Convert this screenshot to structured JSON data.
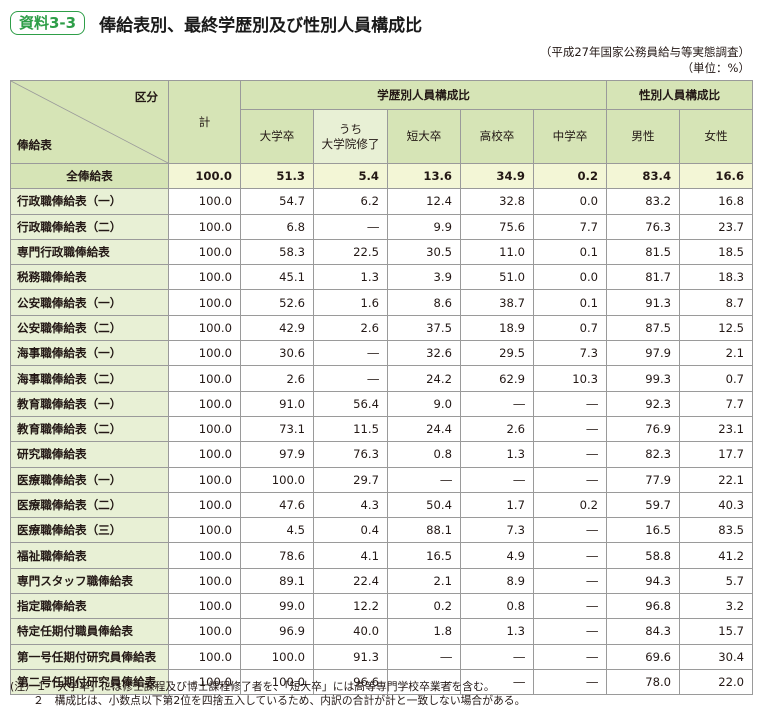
{
  "header": {
    "badge": "資料3-3",
    "title": "俸給表別、最終学歴別及び性別人員構成比"
  },
  "source": {
    "line1": "（平成27年国家公務員給与等実態調査）",
    "line2": "（単位：%）"
  },
  "colors": {
    "accent": "#2e9e48",
    "header_bg": "#d6e4b6",
    "row_label_bg": "#e8f0d5",
    "total_row_bg": "#f3f6d6"
  },
  "table": {
    "kubun": "区分",
    "row_header": "俸給表",
    "kei": "計",
    "group_edu": "学歴別人員構成比",
    "group_sex": "性別人員構成比",
    "cols": {
      "daigaku": "大学卒",
      "uchi1": "うち",
      "uchi2": "大学院修了",
      "tandai": "短大卒",
      "koukou": "高校卒",
      "chugaku": "中学卒",
      "male": "男性",
      "female": "女性"
    },
    "rows": [
      {
        "name": "全俸給表",
        "v": [
          "100.0",
          "51.3",
          "5.4",
          "13.6",
          "34.9",
          "0.2",
          "83.4",
          "16.6"
        ]
      },
      {
        "name": "行政職俸給表（一）",
        "v": [
          "100.0",
          "54.7",
          "6.2",
          "12.4",
          "32.8",
          "0.0",
          "83.2",
          "16.8"
        ]
      },
      {
        "name": "行政職俸給表（二）",
        "v": [
          "100.0",
          "6.8",
          "―",
          "9.9",
          "75.6",
          "7.7",
          "76.3",
          "23.7"
        ]
      },
      {
        "name": "専門行政職俸給表",
        "v": [
          "100.0",
          "58.3",
          "22.5",
          "30.5",
          "11.0",
          "0.1",
          "81.5",
          "18.5"
        ]
      },
      {
        "name": "税務職俸給表",
        "v": [
          "100.0",
          "45.1",
          "1.3",
          "3.9",
          "51.0",
          "0.0",
          "81.7",
          "18.3"
        ]
      },
      {
        "name": "公安職俸給表（一）",
        "v": [
          "100.0",
          "52.6",
          "1.6",
          "8.6",
          "38.7",
          "0.1",
          "91.3",
          "8.7"
        ]
      },
      {
        "name": "公安職俸給表（二）",
        "v": [
          "100.0",
          "42.9",
          "2.6",
          "37.5",
          "18.9",
          "0.7",
          "87.5",
          "12.5"
        ]
      },
      {
        "name": "海事職俸給表（一）",
        "v": [
          "100.0",
          "30.6",
          "―",
          "32.6",
          "29.5",
          "7.3",
          "97.9",
          "2.1"
        ]
      },
      {
        "name": "海事職俸給表（二）",
        "v": [
          "100.0",
          "2.6",
          "―",
          "24.2",
          "62.9",
          "10.3",
          "99.3",
          "0.7"
        ]
      },
      {
        "name": "教育職俸給表（一）",
        "v": [
          "100.0",
          "91.0",
          "56.4",
          "9.0",
          "―",
          "―",
          "92.3",
          "7.7"
        ]
      },
      {
        "name": "教育職俸給表（二）",
        "v": [
          "100.0",
          "73.1",
          "11.5",
          "24.4",
          "2.6",
          "―",
          "76.9",
          "23.1"
        ]
      },
      {
        "name": "研究職俸給表",
        "v": [
          "100.0",
          "97.9",
          "76.3",
          "0.8",
          "1.3",
          "―",
          "82.3",
          "17.7"
        ]
      },
      {
        "name": "医療職俸給表（一）",
        "v": [
          "100.0",
          "100.0",
          "29.7",
          "―",
          "―",
          "―",
          "77.9",
          "22.1"
        ]
      },
      {
        "name": "医療職俸給表（二）",
        "v": [
          "100.0",
          "47.6",
          "4.3",
          "50.4",
          "1.7",
          "0.2",
          "59.7",
          "40.3"
        ]
      },
      {
        "name": "医療職俸給表（三）",
        "v": [
          "100.0",
          "4.5",
          "0.4",
          "88.1",
          "7.3",
          "―",
          "16.5",
          "83.5"
        ]
      },
      {
        "name": "福祉職俸給表",
        "v": [
          "100.0",
          "78.6",
          "4.1",
          "16.5",
          "4.9",
          "―",
          "58.8",
          "41.2"
        ]
      },
      {
        "name": "専門スタッフ職俸給表",
        "v": [
          "100.0",
          "89.1",
          "22.4",
          "2.1",
          "8.9",
          "―",
          "94.3",
          "5.7"
        ]
      },
      {
        "name": "指定職俸給表",
        "v": [
          "100.0",
          "99.0",
          "12.2",
          "0.2",
          "0.8",
          "―",
          "96.8",
          "3.2"
        ]
      },
      {
        "name": "特定任期付職員俸給表",
        "v": [
          "100.0",
          "96.9",
          "40.0",
          "1.8",
          "1.3",
          "―",
          "84.3",
          "15.7"
        ]
      },
      {
        "name": "第一号任期付研究員俸給表",
        "v": [
          "100.0",
          "100.0",
          "91.3",
          "―",
          "―",
          "―",
          "69.6",
          "30.4"
        ]
      },
      {
        "name": "第二号任期付研究員俸給表",
        "v": [
          "100.0",
          "100.0",
          "96.6",
          "―",
          "―",
          "―",
          "78.0",
          "22.0"
        ]
      }
    ]
  },
  "notes": {
    "line1": "(注）１「大学卒」には修士課程及び博士課程修了者を、「短大卒」には高等専門学校卒業者を含む。",
    "line2": "２　構成比は、小数点以下第2位を四捨五入しているため、内訳の合計が計と一致しない場合がある。"
  }
}
